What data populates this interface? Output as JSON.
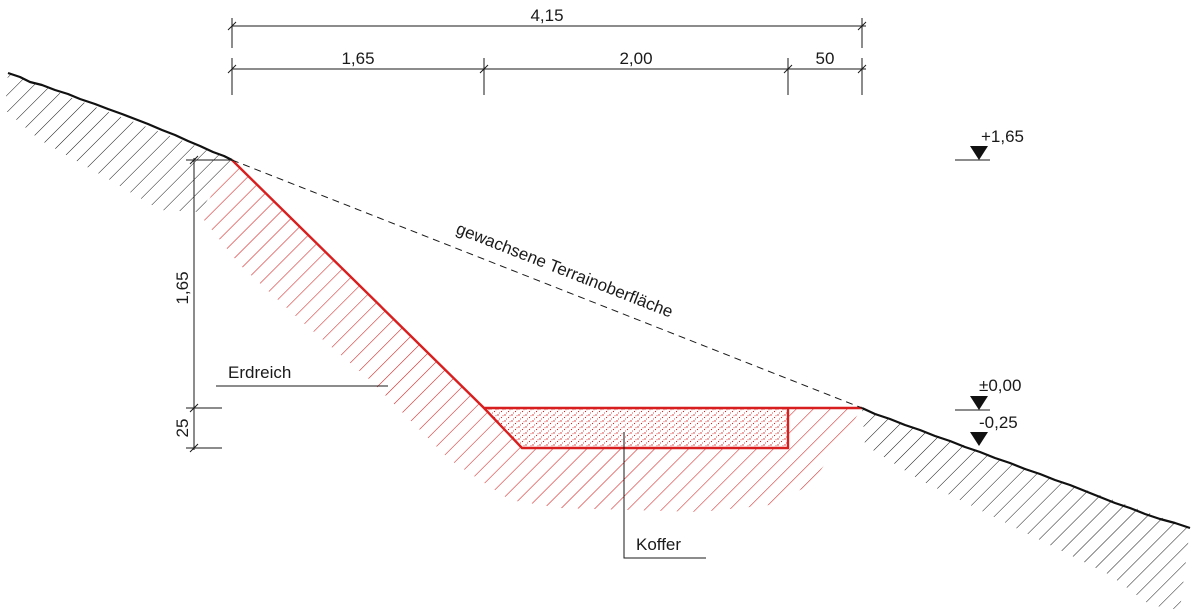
{
  "dimensions": {
    "total": "4,15",
    "segment_left": "1,65",
    "segment_middle": "2,00",
    "segment_right": "50",
    "height_main": "1,65",
    "height_layer": "25"
  },
  "levels": {
    "top": "+1,65",
    "zero": "±0,00",
    "bottom": "-0,25"
  },
  "labels": {
    "terrain": "gewachsene Terrainoberfläche",
    "soil": "Erdreich",
    "bed": "Koffer"
  },
  "colors": {
    "cut_hatch": "#d81e1e",
    "line": "#1a1a1a"
  }
}
